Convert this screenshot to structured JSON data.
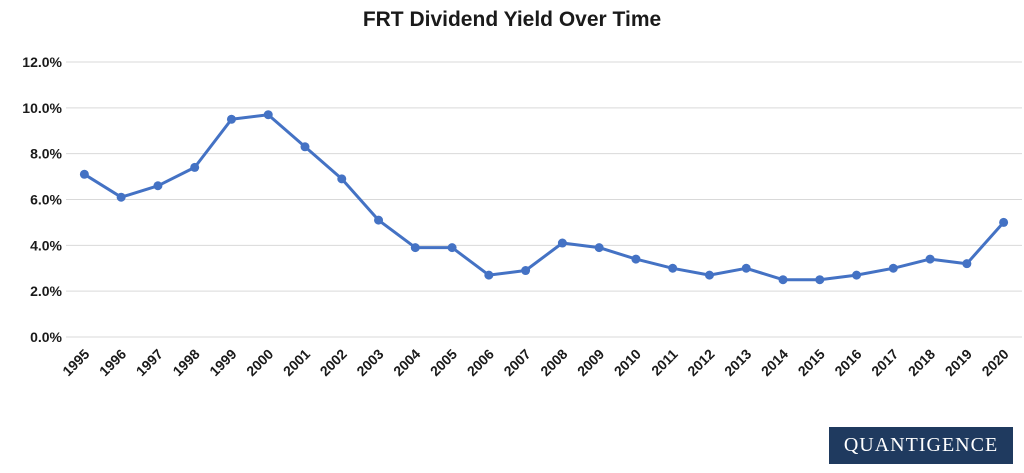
{
  "chart_data": {
    "type": "line",
    "title": "FRT Dividend Yield Over Time",
    "xlabel": "",
    "ylabel": "",
    "x": [
      "1995",
      "1996",
      "1997",
      "1998",
      "1999",
      "2000",
      "2001",
      "2002",
      "2003",
      "2004",
      "2005",
      "2006",
      "2007",
      "2008",
      "2009",
      "2010",
      "2011",
      "2012",
      "2013",
      "2014",
      "2015",
      "2016",
      "2017",
      "2018",
      "2019",
      "2020"
    ],
    "series": [
      {
        "values": [
          7.1,
          6.1,
          6.6,
          7.4,
          9.5,
          9.7,
          8.3,
          6.9,
          5.1,
          3.9,
          3.9,
          2.7,
          2.9,
          4.1,
          3.9,
          3.4,
          3.0,
          2.7,
          3.0,
          2.5,
          2.5,
          2.7,
          3.0,
          3.4,
          3.2,
          5.0
        ]
      }
    ],
    "ylim": [
      0,
      12
    ],
    "yticks": [
      0,
      2,
      4,
      6,
      8,
      10,
      12
    ],
    "ytick_labels": [
      "0.0%",
      "2.0%",
      "4.0%",
      "6.0%",
      "8.0%",
      "10.0%",
      "12.0%"
    ],
    "grid": true,
    "legend": "none",
    "line_color": "#4472c4",
    "grid_color": "#d9d9d9"
  },
  "brand": {
    "text": "QUANTIGENCE"
  }
}
